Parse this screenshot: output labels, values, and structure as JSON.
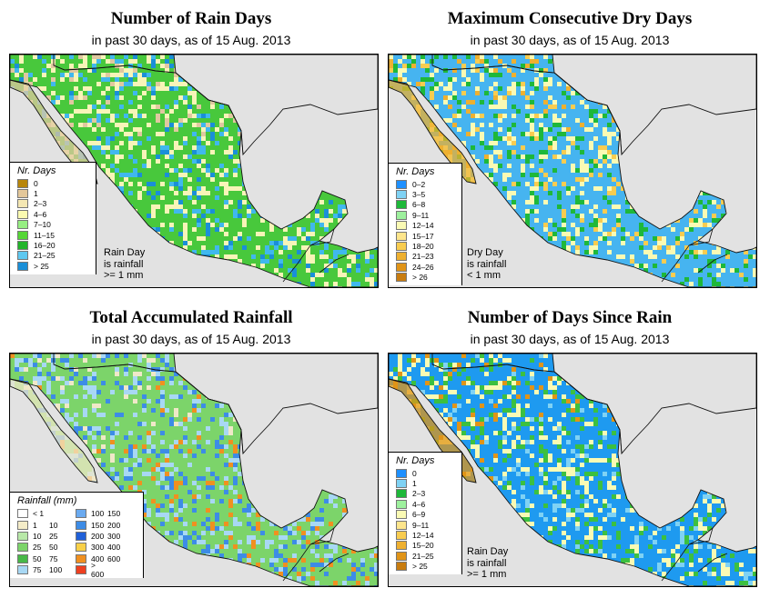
{
  "panels": [
    {
      "id": "rain_days",
      "title": "Number of Rain Days",
      "subtitle": "in past 30 days, as of  15 Aug. 2013",
      "legend_title": "Nr. Days",
      "legend": [
        {
          "label": "0",
          "color": "#b8860b"
        },
        {
          "label": "1",
          "color": "#e3c79a"
        },
        {
          "label": "2–3",
          "color": "#f4e7b3"
        },
        {
          "label": "4–6",
          "color": "#fafab0"
        },
        {
          "label": "7–10",
          "color": "#96ee82"
        },
        {
          "label": "11–15",
          "color": "#55d636"
        },
        {
          "label": "16–20",
          "color": "#22b42a"
        },
        {
          "label": "21–25",
          "color": "#5ec8f0"
        },
        {
          "label": "> 25",
          "color": "#1a8fd8"
        }
      ],
      "note": [
        "Rain Day",
        "is rainfall",
        ">= 1 mm"
      ],
      "palette": {
        "land": "#48c83c",
        "dry": "#e0c8a0",
        "pale": "#f8f4b8",
        "wet": "#40b8ee",
        "extra": "#1a8fd8"
      }
    },
    {
      "id": "dry_days",
      "title": "Maximum Consecutive Dry Days",
      "subtitle": "in past 30 days, as of  15 Aug. 2013",
      "legend_title": "Nr. Days",
      "legend": [
        {
          "label": "0–2",
          "color": "#1e90ff"
        },
        {
          "label": "3–5",
          "color": "#7fd2f4"
        },
        {
          "label": "6–8",
          "color": "#1eb83a"
        },
        {
          "label": "9–11",
          "color": "#9df09d"
        },
        {
          "label": "12–14",
          "color": "#fafab4"
        },
        {
          "label": "15–17",
          "color": "#fde58c"
        },
        {
          "label": "18–20",
          "color": "#f8cc50"
        },
        {
          "label": "21–23",
          "color": "#eeb030"
        },
        {
          "label": "24–26",
          "color": "#e09418"
        },
        {
          "label": "> 26",
          "color": "#c87c10"
        }
      ],
      "note": [
        "Dry Day",
        "is rainfall",
        "< 1 mm"
      ],
      "palette": {
        "land": "#46b4f0",
        "dry": "#eeb030",
        "pale": "#fafab4",
        "wet": "#1eb83a",
        "extra": "#f8cc50"
      }
    },
    {
      "id": "rainfall",
      "title": "Total Accumulated Rainfall",
      "subtitle": "in past 30 days, as of  15 Aug. 2013",
      "legend_title": "Rainfall (mm)",
      "legend_grid": [
        {
          "lo": "< 1",
          "hi": "",
          "color": "#ffffff"
        },
        {
          "lo": "100",
          "hi": "150",
          "color": "#6aaaf0"
        },
        {
          "lo": "1",
          "hi": "10",
          "color": "#f4ecc8"
        },
        {
          "lo": "150",
          "hi": "200",
          "color": "#3d8ce6"
        },
        {
          "lo": "10",
          "hi": "25",
          "color": "#b8e8a8"
        },
        {
          "lo": "200",
          "hi": "300",
          "color": "#2060d8"
        },
        {
          "lo": "25",
          "hi": "50",
          "color": "#7cd46a"
        },
        {
          "lo": "300",
          "hi": "400",
          "color": "#f8d048"
        },
        {
          "lo": "50",
          "hi": "75",
          "color": "#48b848"
        },
        {
          "lo": "400",
          "hi": "600",
          "color": "#f09020"
        },
        {
          "lo": "75",
          "hi": "100",
          "color": "#a8d8f4"
        },
        {
          "lo": "> 600",
          "hi": "",
          "color": "#ee4020"
        }
      ],
      "palette": {
        "land": "#7cd46a",
        "dry": "#f0e8c8",
        "pale": "#a8d8f4",
        "wet": "#3d8ce6",
        "extra": "#f09020"
      }
    },
    {
      "id": "since_rain",
      "title": "Number of Days Since Rain",
      "subtitle": "in past 30 days, as of  15 Aug. 2013",
      "legend_title": "Nr. Days",
      "legend": [
        {
          "label": "0",
          "color": "#1e90ff"
        },
        {
          "label": "1",
          "color": "#7fd2f4"
        },
        {
          "label": "2–3",
          "color": "#1eb83a"
        },
        {
          "label": "4–6",
          "color": "#9df09d"
        },
        {
          "label": "6–9",
          "color": "#fafab4"
        },
        {
          "label": "9–11",
          "color": "#fde58c"
        },
        {
          "label": "12–14",
          "color": "#f8cc50"
        },
        {
          "label": "15–20",
          "color": "#eeb030"
        },
        {
          "label": "21–25",
          "color": "#e09418"
        },
        {
          "label": "> 25",
          "color": "#c87c10"
        }
      ],
      "note": [
        "Rain Day",
        "is rainfall",
        ">= 1 mm"
      ],
      "palette": {
        "land": "#1e9af0",
        "dry": "#e09418",
        "pale": "#fafab4",
        "wet": "#3cc040",
        "extra": "#7fd2f4"
      }
    }
  ]
}
